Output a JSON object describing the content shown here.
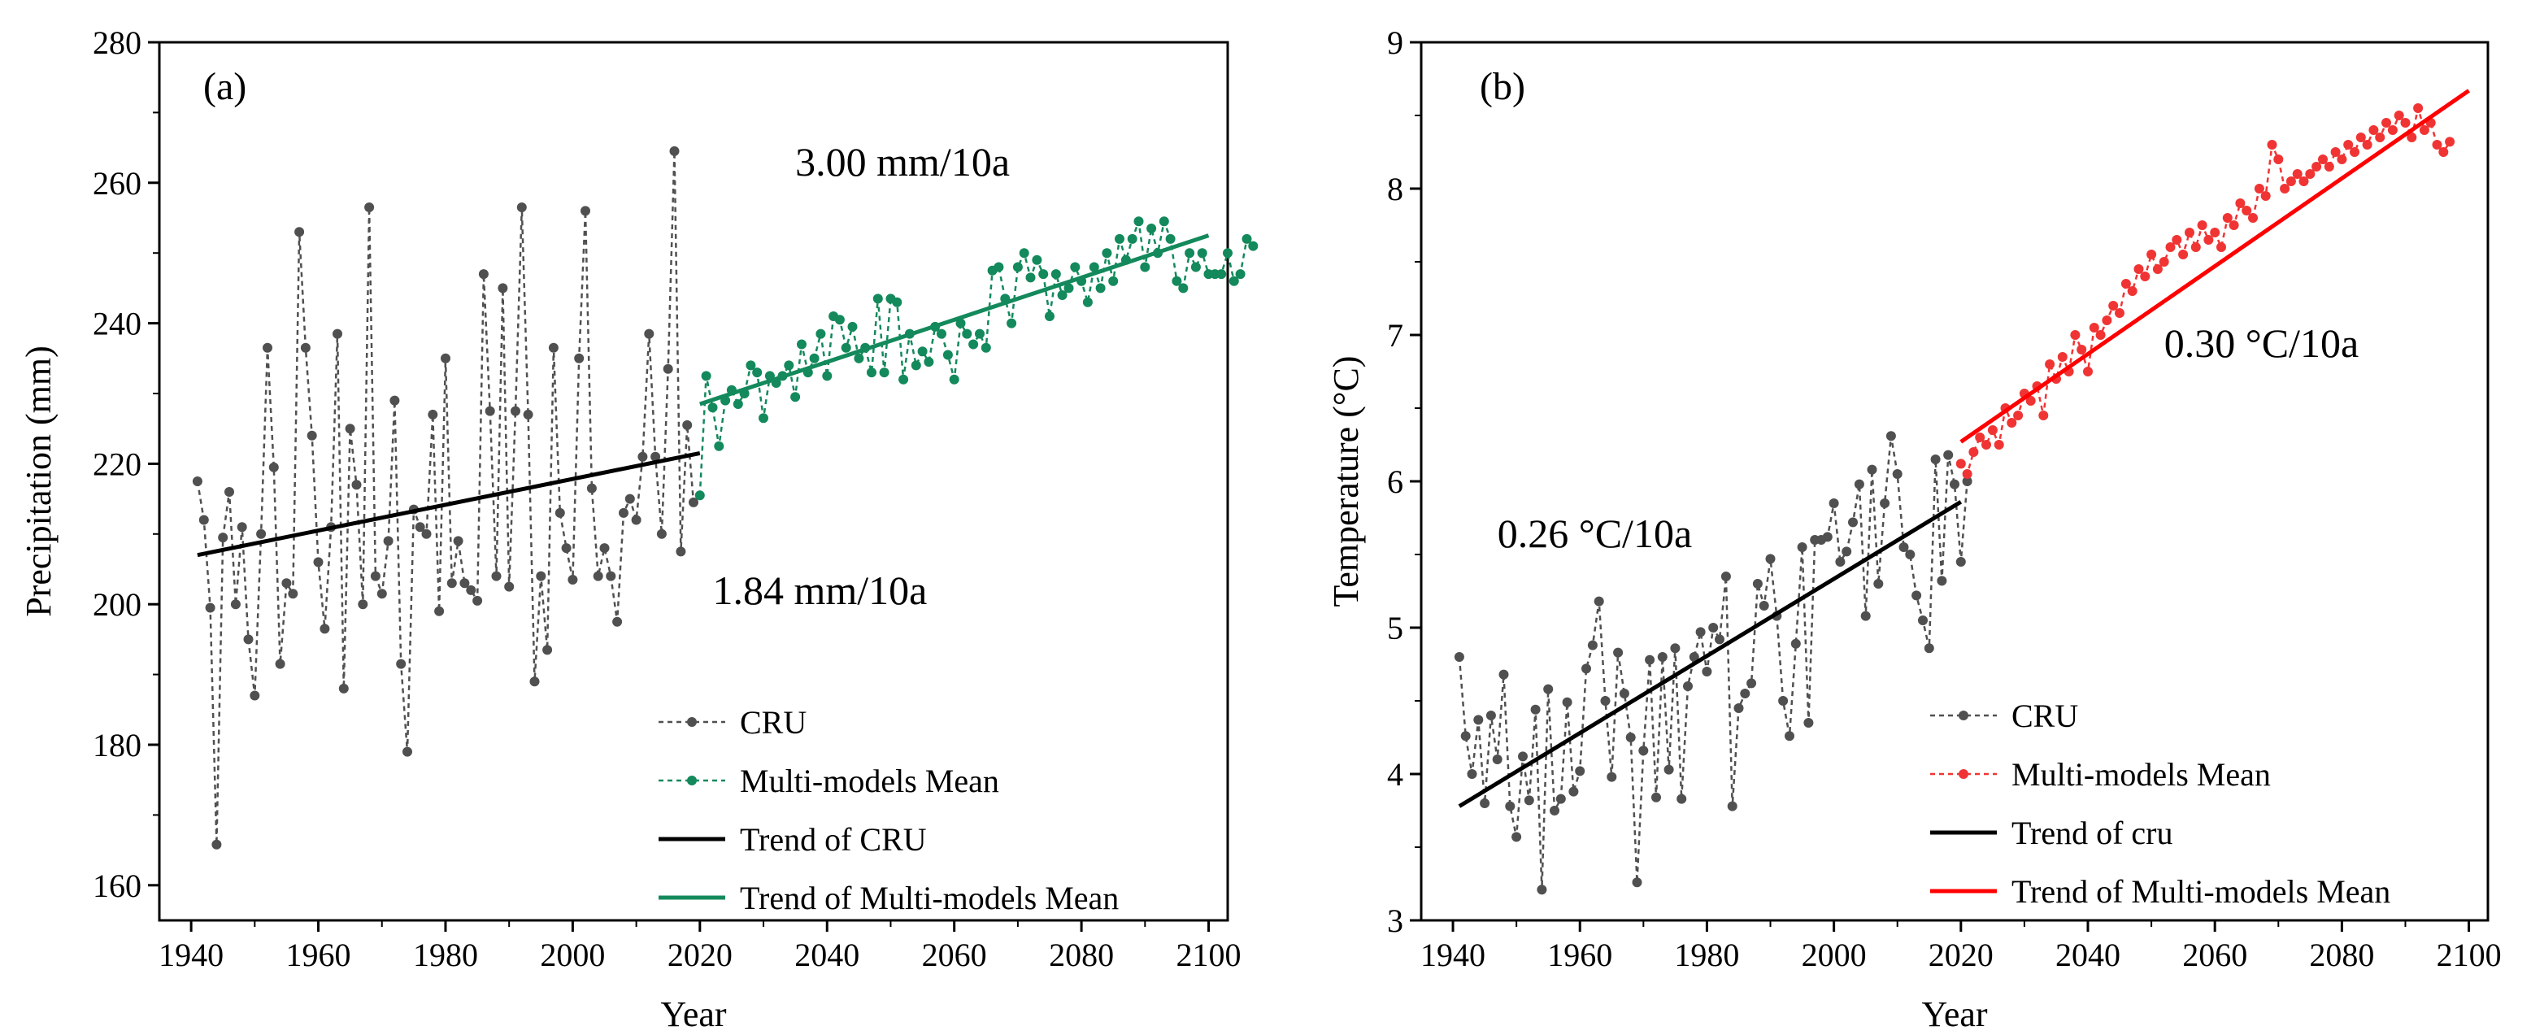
{
  "chart_data": [
    {
      "panel": "(a)",
      "type": "line",
      "xlabel": "Year",
      "ylabel": "Precipitation (mm)",
      "xlim": [
        1935,
        2103
      ],
      "ylim": [
        155,
        280
      ],
      "xticks": [
        1940,
        1960,
        1980,
        2000,
        2020,
        2040,
        2060,
        2080,
        2100
      ],
      "yticks": [
        160,
        180,
        200,
        220,
        240,
        260,
        280
      ],
      "annotations": [
        {
          "text": "3.00 mm/10a",
          "x": 2035,
          "y": 261
        },
        {
          "text": "1.84 mm/10a",
          "x": 2022,
          "y": 200
        }
      ],
      "legend": {
        "position": "bottom-right",
        "entries": [
          "CRU",
          "Multi-models Mean",
          "Trend of CRU",
          "Trend of Multi-models Mean"
        ]
      },
      "series": [
        {
          "name": "CRU",
          "style": "dashed-markers",
          "color": "#505050",
          "x_start": 1941,
          "values": [
            217.5,
            212,
            199.5,
            165.8,
            209.5,
            216,
            200,
            211,
            195,
            187,
            210,
            236.5,
            219.5,
            191.5,
            203,
            201.5,
            253,
            236.5,
            224,
            206,
            196.5,
            211,
            238.5,
            188,
            225,
            217,
            200,
            256.5,
            204,
            201.5,
            209,
            229,
            191.5,
            179,
            213.5,
            211,
            210,
            227,
            199,
            235,
            203,
            209,
            203,
            202,
            200.5,
            247,
            227.5,
            204,
            245,
            202.5,
            227.5,
            256.5,
            227,
            189,
            204,
            193.5,
            236.5,
            213,
            208,
            203.5,
            235,
            256,
            216.5,
            204,
            208,
            204,
            197.5,
            213,
            215,
            212,
            221,
            238.5,
            221,
            210,
            233.5,
            264.5,
            207.5,
            225.5,
            214.5
          ]
        },
        {
          "name": "Multi-models Mean",
          "style": "dashed-markers",
          "color": "#13895c",
          "x_start": 2020,
          "values": [
            215.5,
            232.5,
            228,
            222.5,
            229,
            230.5,
            228.5,
            230,
            234,
            233,
            226.5,
            232.5,
            231.5,
            232.5,
            234,
            229.5,
            237,
            233,
            235,
            238.5,
            232.5,
            241,
            240.5,
            236.5,
            239.5,
            235,
            236.5,
            233,
            243.5,
            233,
            243.5,
            243,
            232,
            238.5,
            234,
            236,
            234.5,
            239.5,
            238.5,
            235.5,
            232,
            240,
            238.5,
            237,
            238.5,
            236.5,
            247.5,
            248,
            243.5,
            240,
            248,
            250,
            246.5,
            249,
            247,
            241,
            247,
            244,
            245,
            248,
            246,
            243,
            248,
            245,
            250,
            246,
            252,
            249,
            252,
            254.5,
            248,
            253.5,
            250,
            254.5,
            252,
            246,
            245,
            250,
            248,
            250,
            247,
            247,
            247,
            250,
            246,
            247,
            252,
            251
          ]
        },
        {
          "name": "Trend of CRU",
          "style": "solid",
          "color": "#000000",
          "x": [
            1941,
            2020
          ],
          "values": [
            207,
            221.5
          ]
        },
        {
          "name": "Trend of Multi-models Mean",
          "style": "solid",
          "color": "#13895c",
          "x": [
            2020,
            2100
          ],
          "values": [
            228.5,
            252.5
          ]
        }
      ]
    },
    {
      "panel": "(b)",
      "type": "line",
      "xlabel": "Year",
      "ylabel": "Temperature (°C)",
      "xlim": [
        1935,
        2103
      ],
      "ylim": [
        3,
        9
      ],
      "xticks": [
        1940,
        1960,
        1980,
        2000,
        2020,
        2040,
        2060,
        2080,
        2100
      ],
      "yticks": [
        3,
        4,
        5,
        6,
        7,
        8,
        9
      ],
      "annotations": [
        {
          "text": "0.30 °C/10a",
          "x": 2052,
          "y": 6.85
        },
        {
          "text": "0.26 °C/10a",
          "x": 1947,
          "y": 5.55
        }
      ],
      "legend": {
        "position": "bottom-right",
        "entries": [
          "CRU",
          "Multi-models Mean",
          "Trend of cru",
          "Trend of Multi-models Mean"
        ]
      },
      "series": [
        {
          "name": "CRU",
          "style": "dashed-markers",
          "color": "#505050",
          "x_start": 1941,
          "values": [
            4.8,
            4.26,
            4.0,
            4.37,
            3.8,
            4.4,
            4.1,
            4.68,
            3.78,
            3.57,
            4.12,
            3.82,
            4.44,
            3.21,
            4.58,
            3.75,
            3.83,
            4.49,
            3.88,
            4.02,
            4.72,
            4.88,
            5.18,
            4.5,
            3.98,
            4.83,
            4.55,
            4.25,
            3.26,
            4.16,
            4.78,
            3.84,
            4.8,
            4.03,
            4.86,
            3.83,
            4.6,
            4.8,
            4.97,
            4.7,
            5.0,
            4.92,
            5.35,
            3.78,
            4.45,
            4.55,
            4.62,
            5.3,
            5.15,
            5.47,
            5.08,
            4.5,
            4.26,
            4.89,
            5.55,
            4.35,
            5.6,
            5.6,
            5.62,
            5.85,
            5.45,
            5.52,
            5.72,
            5.98,
            5.08,
            6.08,
            5.3,
            5.85,
            6.31,
            6.05,
            5.55,
            5.5,
            5.22,
            5.05,
            4.86,
            6.15,
            5.32,
            6.18,
            5.98,
            5.45,
            6.0
          ]
        },
        {
          "name": "Multi-models Mean",
          "style": "dashed-markers",
          "color": "#f03434",
          "x_start": 2020,
          "values": [
            6.12,
            6.05,
            6.2,
            6.3,
            6.25,
            6.35,
            6.25,
            6.5,
            6.4,
            6.45,
            6.6,
            6.55,
            6.65,
            6.45,
            6.8,
            6.7,
            6.85,
            6.75,
            7.0,
            6.9,
            6.75,
            7.05,
            7.0,
            7.1,
            7.2,
            7.15,
            7.35,
            7.3,
            7.45,
            7.4,
            7.55,
            7.45,
            7.5,
            7.6,
            7.65,
            7.55,
            7.7,
            7.6,
            7.75,
            7.65,
            7.7,
            7.6,
            7.8,
            7.75,
            7.9,
            7.85,
            7.8,
            8.0,
            7.95,
            8.3,
            8.2,
            8.0,
            8.05,
            8.1,
            8.05,
            8.1,
            8.15,
            8.2,
            8.15,
            8.25,
            8.2,
            8.3,
            8.25,
            8.35,
            8.3,
            8.4,
            8.35,
            8.45,
            8.4,
            8.5,
            8.45,
            8.35,
            8.55,
            8.4,
            8.45,
            8.3,
            8.25,
            8.32
          ]
        },
        {
          "name": "Trend of cru",
          "style": "solid",
          "color": "#000000",
          "x": [
            1941,
            2020
          ],
          "values": [
            3.78,
            5.86
          ]
        },
        {
          "name": "Trend of Multi-models Mean",
          "style": "solid",
          "color": "#ff0000",
          "x": [
            2020,
            2100
          ],
          "values": [
            6.27,
            8.67
          ]
        }
      ]
    }
  ]
}
